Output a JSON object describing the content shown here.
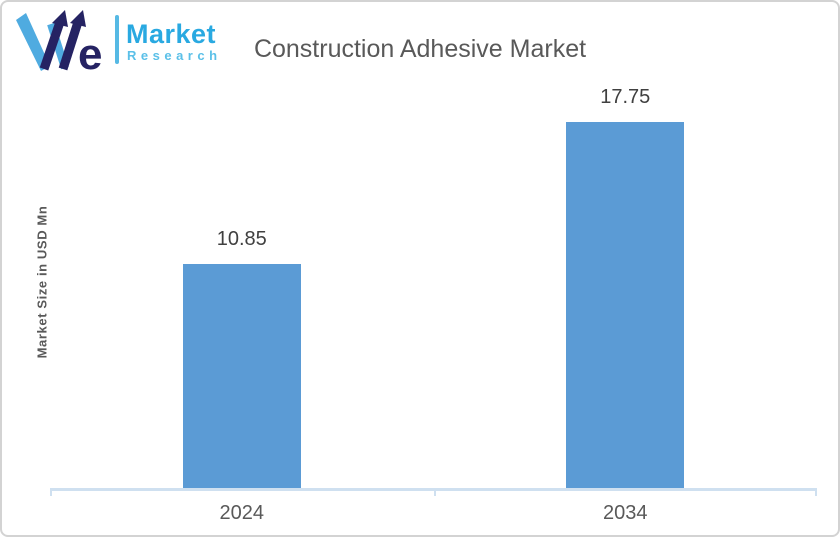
{
  "logo": {
    "brand_word_e": "e",
    "market_label": "Market",
    "research_label": "Research",
    "colors": {
      "navy": "#252363",
      "light_blue": "#4FABE0",
      "market_blue": "#29A9E1",
      "research_blue": "#5BC0E8",
      "divider_blue": "#56B9E4"
    }
  },
  "chart_data": {
    "type": "bar",
    "title": "Construction Adhesive Market",
    "categories": [
      "2024",
      "2034"
    ],
    "values": [
      10.85,
      17.75
    ],
    "data_labels": [
      "10.85",
      "17.75"
    ],
    "xlabel": "",
    "ylabel": "Market Size in USD Mn",
    "ylim": [
      0,
      17.75
    ],
    "grid": false,
    "legend": "none",
    "bar_color": "#5B9BD5",
    "axis_color": "#CFE0F0",
    "title_color": "#595959",
    "label_color": "#404040"
  }
}
